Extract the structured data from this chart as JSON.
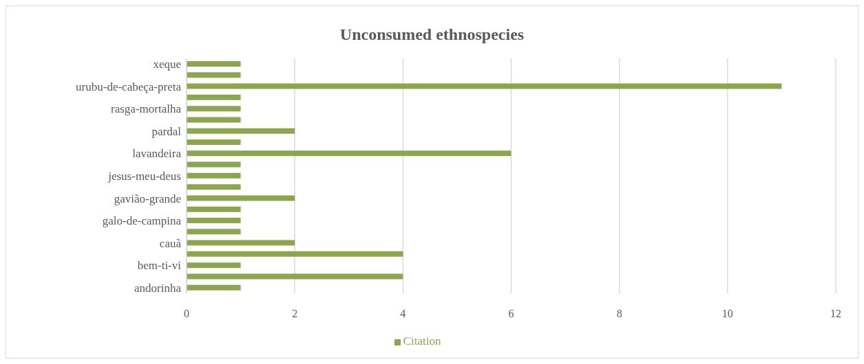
{
  "chart_data": {
    "type": "bar",
    "orientation": "horizontal",
    "title": "Unconsumed ethnospecies",
    "categories": [
      "xeque",
      null,
      "urubu-de-cabeça-preta",
      null,
      "rasga-mortalha",
      null,
      "pardal",
      null,
      "lavandeira",
      null,
      "jesus-meu-deus",
      null,
      "gavião-grande",
      null,
      "galo-de-campina",
      null,
      "cauã",
      null,
      "bem-ti-vi",
      null,
      "andorinha"
    ],
    "series": [
      {
        "name": "Citation",
        "color": "#8aa64f",
        "values": [
          1,
          1,
          11,
          1,
          1,
          1,
          2,
          1,
          6,
          1,
          1,
          1,
          2,
          1,
          1,
          1,
          2,
          4,
          1,
          4,
          1
        ]
      }
    ],
    "xlim": [
      0,
      12
    ],
    "xticks": [
      0,
      2,
      4,
      6,
      8,
      10,
      12
    ],
    "grid": "x",
    "legend": "bottom"
  }
}
